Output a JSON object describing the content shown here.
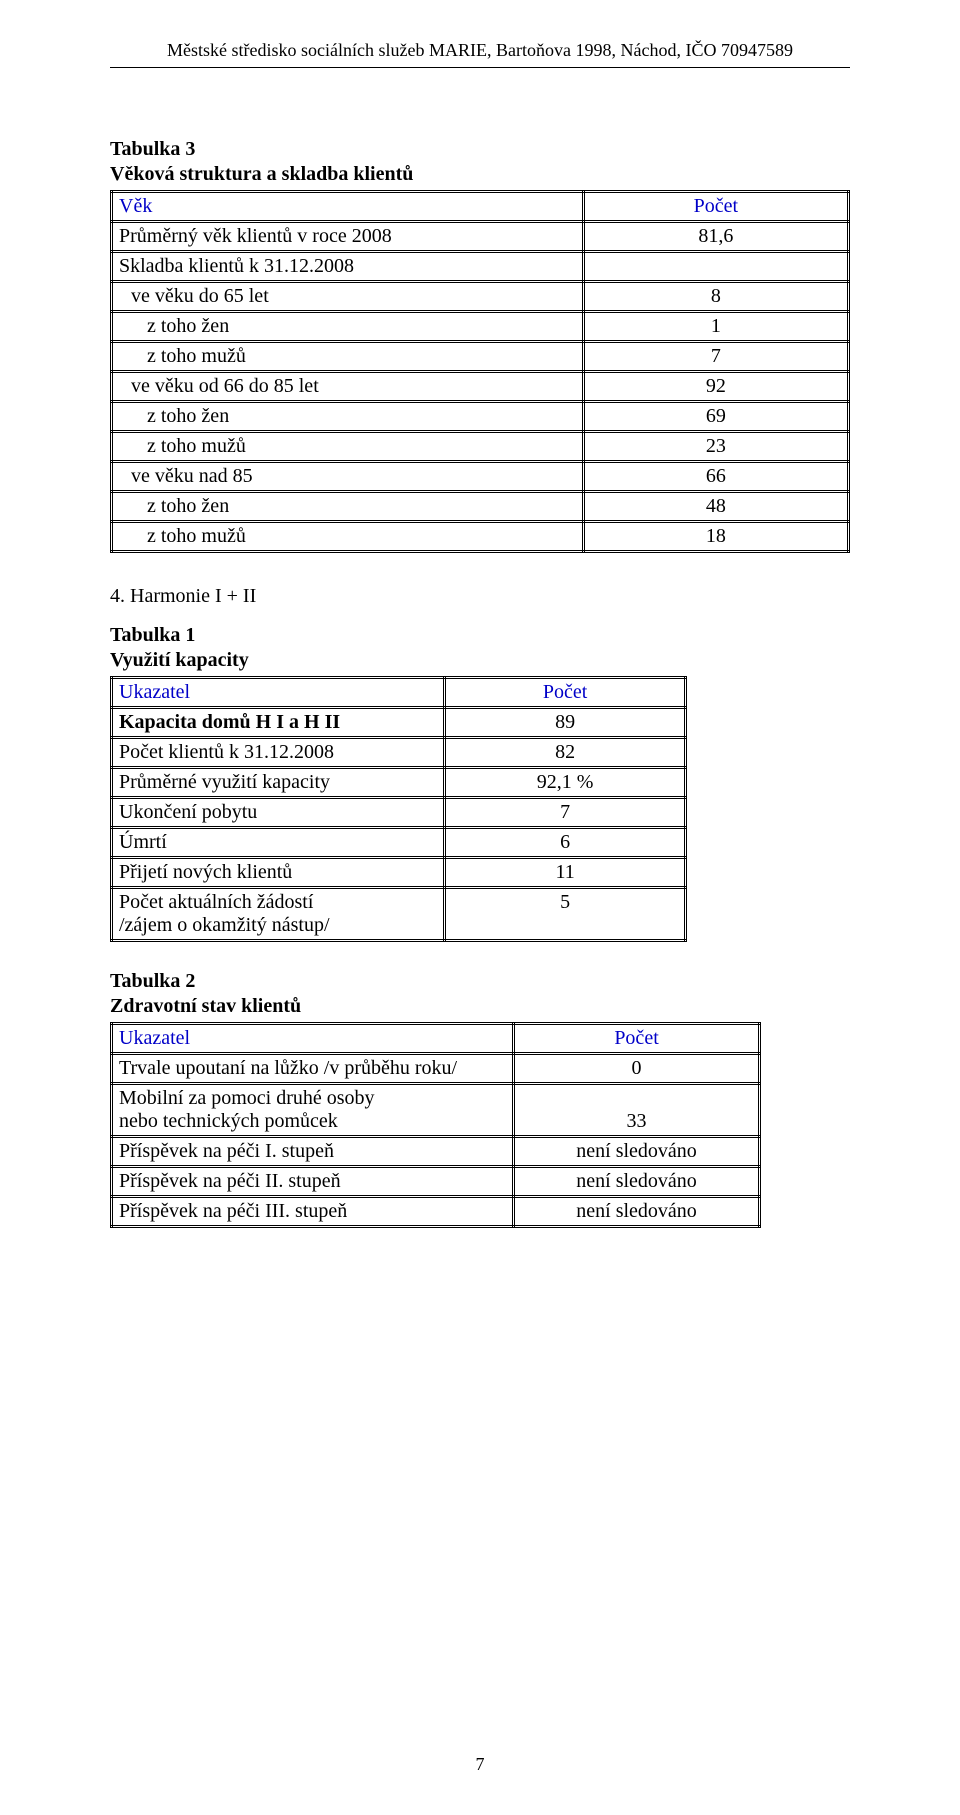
{
  "header": {
    "text": "Městské středisko sociálních služeb MARIE, Bartoňova 1998, Náchod, IČO 70947589"
  },
  "table3": {
    "title": "Tabulka 3",
    "subtitle": "Věková struktura a skladba klientů",
    "head": {
      "label": "Věk",
      "value": "Počet"
    },
    "rows": [
      {
        "label": "Průměrný věk klientů v roce 2008",
        "value": "81,6",
        "indent": 0
      },
      {
        "label": "Skladba klientů k 31.12.2008",
        "value": "",
        "indent": 0
      },
      {
        "label": "ve věku do 65 let",
        "value": "8",
        "indent": 1
      },
      {
        "label": "z toho žen",
        "value": "1",
        "indent": 2
      },
      {
        "label": "z toho mužů",
        "value": "7",
        "indent": 2
      },
      {
        "label": "ve věku od 66 do 85 let",
        "value": "92",
        "indent": 1
      },
      {
        "label": "z toho žen",
        "value": "69",
        "indent": 2
      },
      {
        "label": "z toho mužů",
        "value": "23",
        "indent": 2
      },
      {
        "label": "ve věku nad 85",
        "value": "66",
        "indent": 1
      },
      {
        "label": "z toho  žen",
        "value": "48",
        "indent": 2
      },
      {
        "label": "z toho mužů",
        "value": "18",
        "indent": 2
      }
    ]
  },
  "section4": {
    "heading": "4. Harmonie I + II"
  },
  "table1": {
    "title": "Tabulka 1",
    "subtitle": "Využití kapacity",
    "head": {
      "label": "Ukazatel",
      "value": "Počet"
    },
    "rows": [
      {
        "label": "Kapacita domů H I a H II",
        "value": "89",
        "bold": true
      },
      {
        "label": "Počet klientů k 31.12.2008",
        "value": "82"
      },
      {
        "label": "Průměrné využití kapacity",
        "value": "92,1 %"
      },
      {
        "label": "Ukončení pobytu",
        "value": "7"
      },
      {
        "label": "Úmrtí",
        "value": "6"
      },
      {
        "label": "Přijetí nových klientů",
        "value": "11"
      },
      {
        "label": "Počet aktuálních žádostí\n/zájem o okamžitý nástup/",
        "value": "5"
      }
    ]
  },
  "table2": {
    "title": "Tabulka 2",
    "subtitle": "Zdravotní stav klientů",
    "head": {
      "label": "Ukazatel",
      "value": "Počet"
    },
    "rows": [
      {
        "label": "Trvale upoutaní na lůžko /v průběhu roku/",
        "value": "0"
      },
      {
        "label": "Mobilní za pomoci druhé osoby\nnebo technických pomůcek",
        "value": "33",
        "valign": "bottom"
      },
      {
        "label": "Příspěvek na péči I. stupeň",
        "value": "není sledováno"
      },
      {
        "label": "Příspěvek na péči II. stupeň",
        "value": "není sledováno"
      },
      {
        "label": "Příspěvek na péči III. stupeň",
        "value": "není sledováno"
      }
    ]
  },
  "pageNumber": "7",
  "colors": {
    "text": "#000000",
    "headerRow": "#0000c8",
    "background": "#ffffff",
    "border": "#000000"
  }
}
